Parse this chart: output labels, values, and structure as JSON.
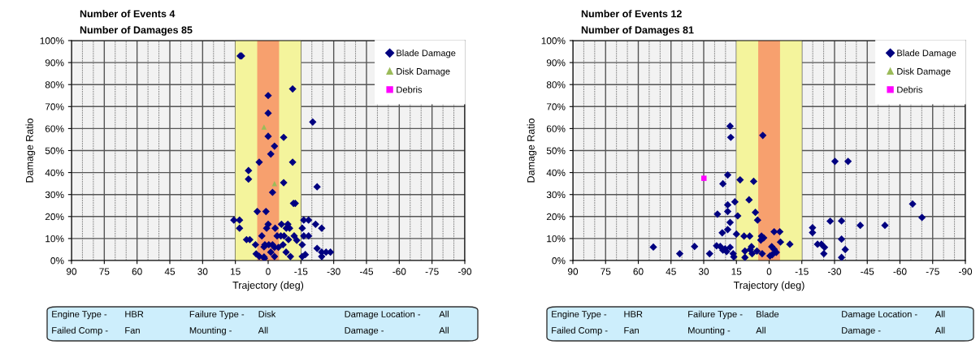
{
  "chart_data": [
    {
      "type": "scatter",
      "title": "Number of Events 4",
      "subtitle": "Number of Damages 85",
      "xlabel": "Trajectory (deg)",
      "ylabel": "Damage Ratio",
      "xlim": [
        90,
        -90
      ],
      "xticks": [
        90,
        75,
        60,
        45,
        30,
        15,
        0,
        -15,
        -30,
        -45,
        -60,
        -75,
        -90
      ],
      "ylim": [
        0,
        100
      ],
      "yticks": [
        {
          "value": 0,
          "label": "0%"
        },
        {
          "value": 10,
          "label": "10%"
        },
        {
          "value": 20,
          "label": "20%"
        },
        {
          "value": 30,
          "label": "30%"
        },
        {
          "value": 40,
          "label": "40%"
        },
        {
          "value": 50,
          "label": "50%"
        },
        {
          "value": 60,
          "label": "60%"
        },
        {
          "value": 70,
          "label": "70%"
        },
        {
          "value": 80,
          "label": "80%"
        },
        {
          "value": 90,
          "label": "90%"
        },
        {
          "value": 100,
          "label": "100%"
        }
      ],
      "grid": true,
      "legend": "top right",
      "bands": [
        {
          "axis": "x",
          "from": 15,
          "to": -15,
          "color": "#f4f49c"
        },
        {
          "axis": "x",
          "from": 5,
          "to": -5,
          "color": "#f7a06e"
        }
      ],
      "series": [
        {
          "name": "Blade Damage",
          "color": "#000080",
          "marker": "diamond",
          "x": [
            12.8,
            12.2,
            -11.2,
            0,
            0,
            -20.4,
            -7.1,
            0,
            -2.9,
            -1.2,
            4.1,
            -11.2,
            9,
            9,
            -7.1,
            -22.4,
            -2,
            -11.6,
            -12.4,
            5,
            1,
            15.7,
            13.1,
            -16.3,
            -18.5,
            13.1,
            0,
            0.7,
            -3.2,
            -6.1,
            -9,
            -8.3,
            -9.8,
            -21.7,
            -24.5,
            -15.6,
            -16.3,
            -18.5,
            2.9,
            -4.1,
            -5.8,
            -7.3,
            -11.9,
            9.9,
            8.4,
            -9.3,
            -13.1,
            5.8,
            1.5,
            -0.3,
            -2,
            -15.6,
            -2.9,
            -6.8,
            1.9,
            5.5,
            4.1,
            1.9,
            -1.2,
            -8.2,
            -2.9,
            -10.2,
            -4.7,
            -15.6,
            -17,
            -22.4,
            -24.5,
            -24.5,
            -26.5,
            -28.5,
            1.7
          ],
          "values": [
            93,
            93,
            78,
            75,
            67,
            63,
            56,
            56.5,
            52,
            48.4,
            44.7,
            44.7,
            40.9,
            37,
            35.4,
            33.5,
            31,
            26,
            26,
            22.3,
            22.3,
            18.4,
            18.4,
            18.4,
            18.4,
            14.7,
            16.5,
            14.7,
            14.7,
            16.5,
            16.5,
            14.7,
            14.7,
            16.5,
            14.7,
            14.7,
            11.2,
            11.2,
            11.2,
            11.2,
            11.2,
            11.2,
            11.2,
            9.5,
            9.5,
            9.5,
            9.2,
            7.2,
            7.2,
            7.2,
            7.2,
            7.2,
            6,
            7.2,
            6.2,
            3,
            1.9,
            1.6,
            3.8,
            3.8,
            1.8,
            1.8,
            6,
            1.8,
            2.7,
            5.5,
            3.8,
            1.8,
            3.8,
            3.8,
            1
          ]
        },
        {
          "name": "Disk Damage",
          "color": "#9bbb59",
          "marker": "triangle",
          "x": [
            1.9,
            -2.9
          ],
          "values": [
            60.7,
            35
          ]
        },
        {
          "name": "Debris",
          "color": "#ff00ff",
          "marker": "square"
        }
      ],
      "annotations": [
        "Engine Type -",
        "HBR",
        "Failure Type -",
        "Disk",
        "Damage Location -",
        "All",
        "Failed Comp -",
        "Fan",
        "Mounting -",
        "All",
        "Damage -",
        "All"
      ]
    },
    {
      "type": "scatter",
      "title": "Number of Events 12",
      "subtitle": "Number of Damages 81",
      "xlabel": "Trajectory (deg)",
      "ylabel": "Damage Ratio",
      "xlim": [
        90,
        -90
      ],
      "xticks": [
        90,
        75,
        60,
        45,
        30,
        15,
        0,
        -15,
        -30,
        -45,
        -60,
        -75,
        -90
      ],
      "ylim": [
        0,
        100
      ],
      "yticks": [
        {
          "value": 0,
          "label": "0%"
        },
        {
          "value": 10,
          "label": "10%"
        },
        {
          "value": 20,
          "label": "20%"
        },
        {
          "value": 30,
          "label": "30%"
        },
        {
          "value": 40,
          "label": "40%"
        },
        {
          "value": 50,
          "label": "50%"
        },
        {
          "value": 60,
          "label": "60%"
        },
        {
          "value": 70,
          "label": "70%"
        },
        {
          "value": 80,
          "label": "80%"
        },
        {
          "value": 90,
          "label": "90%"
        },
        {
          "value": 100,
          "label": "100%"
        }
      ],
      "grid": true,
      "legend": "top right",
      "bands": [
        {
          "axis": "x",
          "from": 15,
          "to": -15,
          "color": "#f4f49c"
        },
        {
          "axis": "x",
          "from": 5,
          "to": -5,
          "color": "#f7a06e"
        }
      ],
      "series": [
        {
          "name": "Blade Damage",
          "color": "#000080",
          "marker": "diamond",
          "x": [
            17.9,
            17.6,
            2.9,
            -30.2,
            -36.2,
            19,
            21.2,
            13.3,
            7.1,
            15.7,
            9.2,
            19,
            -65.8,
            23.7,
            19,
            14.4,
            6.3,
            5.3,
            -70.1,
            17.9,
            -28,
            -33.2,
            -41.8,
            -53.1,
            -19.9,
            -19.9,
            19,
            21.5,
            15,
            11.5,
            8.9,
            -2.3,
            -4.9,
            3.5,
            2.5,
            3.8,
            -33.2,
            -9.5,
            -5.2,
            -22.2,
            -24,
            -25.4,
            24.1,
            22.4,
            21.2,
            20.2,
            19.5,
            17.9,
            34.2,
            53.1,
            41,
            27.3,
            16.5,
            16.2,
            11.1,
            11.1,
            8.1,
            8.7,
            7.8,
            5.6,
            3.2,
            -1.2,
            -2.3,
            -3.3,
            -0.4,
            -1.4,
            -25.1,
            -34.9,
            -33.2
          ],
          "values": [
            61.1,
            56,
            56.9,
            45.1,
            45.1,
            38.9,
            34.9,
            36.7,
            36,
            26.7,
            27.6,
            25.3,
            25.7,
            21.1,
            22.3,
            20.3,
            21.9,
            18.4,
            19.6,
            17.3,
            17.9,
            18,
            16,
            16,
            14.9,
            12.7,
            14.1,
            12.6,
            12,
            11.1,
            11.1,
            13.1,
            13.1,
            11.1,
            10.3,
            9.3,
            9.7,
            7.4,
            8.4,
            7.4,
            7.4,
            6,
            6.7,
            6.4,
            4.7,
            5.3,
            4.1,
            6,
            6.4,
            6.1,
            3.1,
            3.1,
            3.1,
            1.7,
            4.3,
            1.4,
            6.3,
            5,
            3.1,
            4.3,
            3.1,
            6.3,
            5.1,
            3.7,
            2.1,
            2.6,
            3.1,
            5,
            1.4
          ]
        },
        {
          "name": "Disk Damage",
          "color": "#9bbb59",
          "marker": "triangle"
        },
        {
          "name": "Debris",
          "color": "#ff00ff",
          "marker": "square",
          "x": [
            29.9
          ],
          "values": [
            37.4
          ]
        }
      ],
      "annotations": [
        "Engine Type -",
        "HBR",
        "Failure Type -",
        "Blade",
        "Damage Location -",
        "All",
        "Failed Comp -",
        "Fan",
        "Mounting -",
        "All",
        "Damage -",
        "All"
      ]
    }
  ]
}
